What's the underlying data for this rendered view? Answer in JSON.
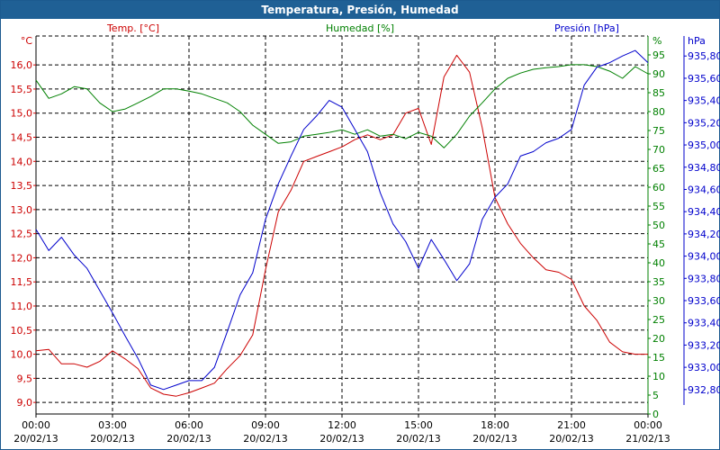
{
  "chart_data": {
    "type": "line",
    "title": "Temperatura, Presión, Humedad",
    "x_hours": [
      0,
      0.5,
      1,
      1.5,
      2,
      2.5,
      3,
      3.5,
      4,
      4.5,
      5,
      5.5,
      6,
      6.5,
      7,
      7.5,
      8,
      8.5,
      9,
      9.5,
      10,
      10.5,
      11,
      11.5,
      12,
      12.5,
      13,
      13.5,
      14,
      14.5,
      15,
      15.5,
      16,
      16.5,
      17,
      17.5,
      18,
      18.5,
      19,
      19.5,
      20,
      20.5,
      21,
      21.5,
      22,
      22.5,
      23,
      23.5,
      24
    ],
    "x_ticks": [
      {
        "time": "00:00",
        "date": "20/02/13"
      },
      {
        "time": "03:00",
        "date": "20/02/13"
      },
      {
        "time": "06:00",
        "date": "20/02/13"
      },
      {
        "time": "09:00",
        "date": "20/02/13"
      },
      {
        "time": "12:00",
        "date": "20/02/13"
      },
      {
        "time": "15:00",
        "date": "20/02/13"
      },
      {
        "time": "18:00",
        "date": "20/02/13"
      },
      {
        "time": "21:00",
        "date": "20/02/13"
      },
      {
        "time": "00:00",
        "date": "21/02/13"
      }
    ],
    "series": [
      {
        "name": "Temp. [°C]",
        "axis": "left",
        "unit": "°C",
        "color": "#cc0000",
        "ylim": [
          8.76,
          16.6
        ],
        "ticks": [
          "9,0",
          "9,5",
          "10,0",
          "10,5",
          "11,0",
          "11,5",
          "12,0",
          "12,5",
          "13,0",
          "13,5",
          "14,0",
          "14,5",
          "15,0",
          "15,5",
          "16,0"
        ],
        "values": [
          10.07,
          10.1,
          9.8,
          9.8,
          9.73,
          9.85,
          10.07,
          9.9,
          9.7,
          9.3,
          9.17,
          9.13,
          9.2,
          9.3,
          9.4,
          9.7,
          9.97,
          10.4,
          11.75,
          12.95,
          13.4,
          14.0,
          14.1,
          14.2,
          14.3,
          14.45,
          14.55,
          14.45,
          14.55,
          15.0,
          15.1,
          14.35,
          15.75,
          16.2,
          15.85,
          14.7,
          13.25,
          12.7,
          12.3,
          12.0,
          11.75,
          11.7,
          11.55,
          11.0,
          10.7,
          10.25,
          10.05,
          10.0,
          10.0
        ]
      },
      {
        "name": "Humedad [%]",
        "axis": "right1",
        "unit": "%",
        "color": "#008000",
        "ylim": [
          0,
          100
        ],
        "ticks": [
          "0",
          "5",
          "10",
          "15",
          "20",
          "25",
          "30",
          "35",
          "40",
          "45",
          "50",
          "55",
          "60",
          "65",
          "70",
          "75",
          "80",
          "85",
          "90",
          "95"
        ],
        "values": [
          88.3,
          83.5,
          84.7,
          86.6,
          86,
          82.3,
          80,
          80.7,
          82.3,
          84,
          86,
          86,
          85.4,
          84.7,
          83.5,
          82.3,
          80,
          76.4,
          74,
          71.6,
          72,
          73.5,
          74,
          74.5,
          75.2,
          74,
          75.2,
          73.5,
          74,
          72.8,
          74.5,
          73.5,
          70.4,
          74,
          78.8,
          82.3,
          86,
          88.8,
          90.2,
          91.2,
          91.6,
          91.9,
          92.4,
          92.4,
          91.9,
          90.7,
          88.8,
          91.9,
          90
        ]
      },
      {
        "name": "Presión [hPa]",
        "axis": "right2",
        "unit": "hPa",
        "color": "#0000cc",
        "ylim": [
          932.58,
          935.98
        ],
        "ticks": [
          "932,80",
          "933,00",
          "933,20",
          "933,40",
          "933,60",
          "933,80",
          "934,00",
          "934,20",
          "934,40",
          "934,60",
          "934,80",
          "935,00",
          "935,20",
          "935,40",
          "935,60",
          "935,80"
        ],
        "values": [
          934.24,
          934.05,
          934.17,
          934.01,
          933.89,
          933.69,
          933.49,
          933.28,
          933.08,
          932.84,
          932.8,
          932.84,
          932.88,
          932.88,
          933.0,
          933.32,
          933.65,
          933.85,
          934.33,
          934.65,
          934.9,
          935.14,
          935.26,
          935.4,
          935.34,
          935.14,
          934.94,
          934.57,
          934.29,
          934.13,
          933.89,
          934.15,
          933.97,
          933.78,
          933.93,
          934.33,
          934.53,
          934.65,
          934.9,
          934.94,
          935.02,
          935.06,
          935.14,
          935.54,
          935.7,
          935.74,
          935.8,
          935.85,
          935.74
        ]
      }
    ],
    "grid": true
  }
}
